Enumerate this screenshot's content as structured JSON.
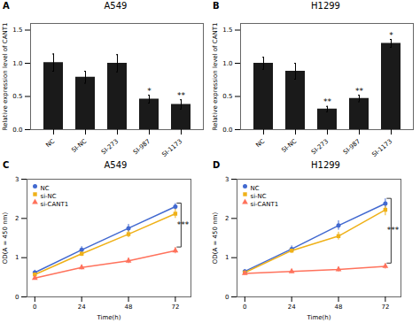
{
  "chart_data": [
    {
      "type": "bar",
      "title": "A549",
      "annotations": [
        {
          "text": "A"
        }
      ],
      "categories": [
        "NC",
        "SI-NC",
        "SI-273",
        "SI-987",
        "SI-1173"
      ],
      "values": [
        1.01,
        0.79,
        1.0,
        0.46,
        0.38
      ],
      "errors": [
        0.13,
        0.09,
        0.13,
        0.06,
        0.07
      ],
      "significance": [
        null,
        null,
        null,
        "*",
        "**"
      ],
      "ylabel": "Relative expression level of CANT1",
      "ylim": [
        0,
        1.6
      ],
      "yticks": [
        {
          "value": 0,
          "label": "0.0"
        },
        0.5,
        {
          "value": 1,
          "label": "1.0"
        },
        1.5
      ],
      "color": "#1a1a1a"
    },
    {
      "type": "bar",
      "title": "H1299",
      "annotations": [
        {
          "text": "B"
        }
      ],
      "categories": [
        "NC",
        "SI-NC",
        "SI-273",
        "SI-987",
        "SI-1173"
      ],
      "values": [
        1.0,
        0.88,
        0.31,
        0.47,
        1.3
      ],
      "errors": [
        0.09,
        0.12,
        0.04,
        0.05,
        0.06
      ],
      "significance": [
        null,
        null,
        "**",
        "**",
        "*"
      ],
      "ylabel": "Relative expression level of CANT1",
      "ylim": [
        0,
        1.6
      ],
      "yticks": [
        {
          "value": 0,
          "label": "0.0"
        },
        0.5,
        {
          "value": 1,
          "label": "1.0"
        },
        1.5
      ],
      "color": "#1a1a1a"
    },
    {
      "type": "line",
      "title": "A549",
      "annotations": [
        {
          "text": "C"
        },
        {
          "text": "***",
          "x": 72,
          "between": [
            "NC",
            "si-CANT1"
          ]
        }
      ],
      "xlabel": "Time(h)",
      "ylabel": "OD(A = 450 nm)",
      "x": [
        0,
        24,
        48,
        72
      ],
      "series": [
        {
          "name": "NC",
          "marker": "circle",
          "values": [
            0.62,
            1.2,
            1.75,
            2.3
          ],
          "errors": [
            0.06,
            0.08,
            0.1,
            0.08
          ]
        },
        {
          "name": "si-NC",
          "marker": "square",
          "values": [
            0.57,
            1.1,
            1.6,
            2.12
          ],
          "errors": [
            0.05,
            0.07,
            0.09,
            0.12
          ]
        },
        {
          "name": "si-CANT1",
          "marker": "triangle",
          "values": [
            0.48,
            0.75,
            0.92,
            1.18
          ],
          "errors": [
            0.05,
            0.06,
            0.07,
            0.08
          ]
        }
      ],
      "xlim": [
        -4,
        80
      ],
      "ylim": [
        0,
        3.0
      ],
      "xticks": [
        0,
        24,
        48,
        72
      ],
      "yticks": [
        0,
        1,
        2,
        3
      ],
      "legend": "upper left"
    },
    {
      "type": "line",
      "title": "H1299",
      "annotations": [
        {
          "text": "D"
        },
        {
          "text": "***",
          "x": 72,
          "between": [
            "NC",
            "si-CANT1"
          ]
        }
      ],
      "xlabel": "Time(h)",
      "ylabel": "OD(A = 450 nm)",
      "x": [
        0,
        24,
        48,
        72
      ],
      "series": [
        {
          "name": "NC",
          "marker": "circle",
          "values": [
            0.65,
            1.22,
            1.82,
            2.38
          ],
          "errors": [
            0.05,
            0.08,
            0.12,
            0.12
          ]
        },
        {
          "name": "si-NC",
          "marker": "square",
          "values": [
            0.62,
            1.18,
            1.55,
            2.22
          ],
          "errors": [
            0.05,
            0.07,
            0.1,
            0.15
          ]
        },
        {
          "name": "si-CANT1",
          "marker": "triangle",
          "values": [
            0.6,
            0.65,
            0.7,
            0.78
          ],
          "errors": [
            0.04,
            0.05,
            0.06,
            0.07
          ]
        }
      ],
      "xlim": [
        -4,
        80
      ],
      "ylim": [
        0,
        3.0
      ],
      "xticks": [
        0,
        24,
        48,
        72
      ],
      "yticks": [
        0,
        1,
        2,
        3
      ],
      "legend": "upper left"
    }
  ]
}
